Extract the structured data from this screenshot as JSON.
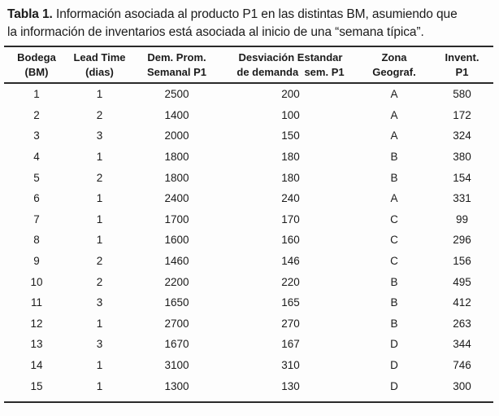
{
  "page": {
    "background": "#fdfdfd",
    "text_color": "#1b1b1b",
    "rule_color": "#2a2a2a"
  },
  "title": {
    "label": "Tabla 1.",
    "line1": "Información asociada al producto P1 en las distintas BM, asumiendo que",
    "line2": "la información de inventarios está asociada al inicio de una “semana típica”."
  },
  "table": {
    "columns": [
      {
        "id": "bodega",
        "line1": "Bodega",
        "line2": "(BM)"
      },
      {
        "id": "lead-time",
        "line1": "Lead Time",
        "line2": "(dias)"
      },
      {
        "id": "dem-prom",
        "line1": "Dem. Prom.",
        "line2": "Semanal P1"
      },
      {
        "id": "desviacion",
        "line1": "Desviación Estandar",
        "line2": "de demanda  sem. P1"
      },
      {
        "id": "zona",
        "line1": "Zona",
        "line2": "Geograf."
      },
      {
        "id": "invent",
        "line1": "Invent.",
        "line2": "P1"
      }
    ],
    "rows": [
      [
        "1",
        "1",
        "2500",
        "200",
        "A",
        "580"
      ],
      [
        "2",
        "2",
        "1400",
        "100",
        "A",
        "172"
      ],
      [
        "3",
        "3",
        "2000",
        "150",
        "A",
        "324"
      ],
      [
        "4",
        "1",
        "1800",
        "180",
        "B",
        "380"
      ],
      [
        "5",
        "2",
        "1800",
        "180",
        "B",
        "154"
      ],
      [
        "6",
        "1",
        "2400",
        "240",
        "A",
        "331"
      ],
      [
        "7",
        "1",
        "1700",
        "170",
        "C",
        "99"
      ],
      [
        "8",
        "1",
        "1600",
        "160",
        "C",
        "296"
      ],
      [
        "9",
        "2",
        "1460",
        "146",
        "C",
        "156"
      ],
      [
        "10",
        "2",
        "2200",
        "220",
        "B",
        "495"
      ],
      [
        "11",
        "3",
        "1650",
        "165",
        "B",
        "412"
      ],
      [
        "12",
        "1",
        "2700",
        "270",
        "B",
        "263"
      ],
      [
        "13",
        "3",
        "1670",
        "167",
        "D",
        "344"
      ],
      [
        "14",
        "1",
        "3100",
        "310",
        "D",
        "746"
      ],
      [
        "15",
        "1",
        "1300",
        "130",
        "D",
        "300"
      ]
    ]
  }
}
